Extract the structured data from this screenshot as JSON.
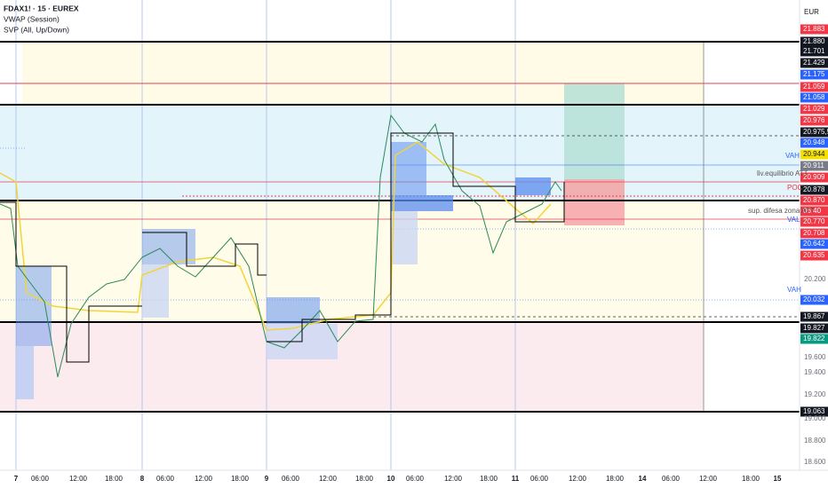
{
  "header": {
    "symbol": "FDAX1! · 15 · EUREX",
    "indicator_1": "VWAP (Session)",
    "indicator_2": "SVP (All, Up/Down)"
  },
  "currency": "EUR",
  "price_labels": [
    {
      "text": "21.883",
      "color": "#f23645"
    },
    {
      "text": "21.880",
      "color": "#131722"
    },
    {
      "text": "21.701",
      "color": "#131722"
    },
    {
      "text": "21.429",
      "color": "#131722"
    },
    {
      "text": "21.175",
      "color": "#2962ff"
    },
    {
      "text": "21.059",
      "color": "#f23645"
    },
    {
      "text": "21.058",
      "color": "#2962ff"
    },
    {
      "text": "21.029",
      "color": "#f23645"
    },
    {
      "text": "20.976",
      "color": "#f23645"
    },
    {
      "text": "20.975,50",
      "color": "#131722"
    },
    {
      "text": "20.948",
      "color": "#2962ff"
    },
    {
      "text": "20.944",
      "color": "#f5e000"
    },
    {
      "text": "20.911",
      "color": "#787b86"
    },
    {
      "text": "20.909",
      "color": "#f23645"
    },
    {
      "text": "20.878",
      "color": "#131722"
    },
    {
      "text": "20.870",
      "color": "#f23645"
    },
    {
      "text": "06:40",
      "color": "#f23645"
    },
    {
      "text": "20.770",
      "color": "#f23645"
    },
    {
      "text": "20.708",
      "color": "#f23645"
    },
    {
      "text": "20.642",
      "color": "#2962ff"
    },
    {
      "text": "20.635",
      "color": "#f23645"
    },
    {
      "text": "20.032",
      "color": "#2962ff"
    },
    {
      "text": "19.867",
      "color": "#131722"
    },
    {
      "text": "19.827",
      "color": "#131722"
    },
    {
      "text": "19.822",
      "color": "#089981"
    },
    {
      "text": "19.063",
      "color": "#131722"
    }
  ],
  "axis_labels": [
    "20.200",
    "19.600",
    "19.400",
    "19.200",
    "19.000",
    "18.800",
    "18.600"
  ],
  "annotations": [
    "VAH",
    "liv.equilibrio ATT",
    "POC",
    "sup. difesa zona ATT",
    "VAL",
    "VAH"
  ],
  "time_labels": [
    "7",
    "06:00",
    "12:00",
    "18:00",
    "8",
    "06:00",
    "12:00",
    "18:00",
    "9",
    "06:00",
    "12:00",
    "18:00",
    "10",
    "06:00",
    "12:00",
    "18:00",
    "11",
    "06:00",
    "12:00",
    "18:00",
    "14",
    "06:00",
    "12:00",
    "18:00",
    "15"
  ]
}
